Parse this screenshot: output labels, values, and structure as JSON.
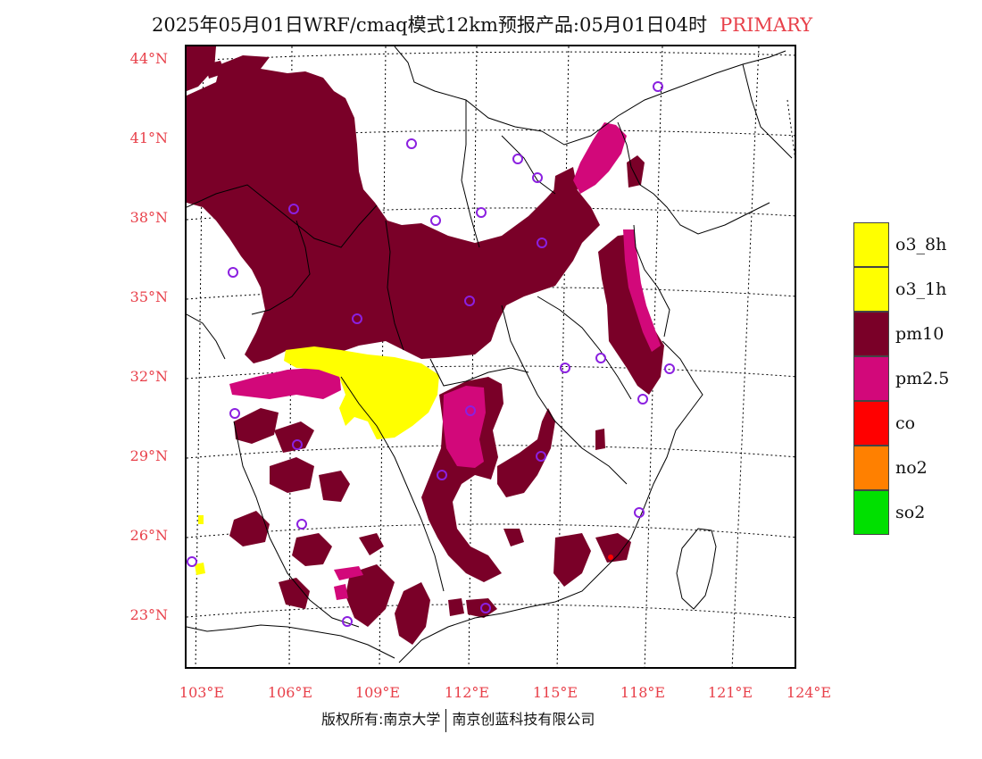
{
  "header": {
    "title": "2025年05月01日WRF/cmaq模式12km预报产品:05月01日04时",
    "tag": "PRIMARY"
  },
  "axes": {
    "lat_labels": [
      "44°N",
      "41°N",
      "38°N",
      "35°N",
      "32°N",
      "29°N",
      "26°N",
      "23°N"
    ],
    "lon_labels": [
      "103°E",
      "106°E",
      "109°E",
      "112°E",
      "115°E",
      "118°E",
      "121°E",
      "124°E"
    ]
  },
  "legend": [
    {
      "label": "o3_8h",
      "color": "#ffff00"
    },
    {
      "label": "o3_1h",
      "color": "#ffff00"
    },
    {
      "label": "pm10",
      "color": "#7a0028"
    },
    {
      "label": "pm2.5",
      "color": "#d2087a"
    },
    {
      "label": "co",
      "color": "#ff0000"
    },
    {
      "label": "no2",
      "color": "#ff8000"
    },
    {
      "label": "so2",
      "color": "#00e000"
    }
  ],
  "colors": {
    "pm10": "#7a0028",
    "pm25": "#d2087a",
    "o3": "#ffff00",
    "station": "#8b20e0",
    "axis_label": "#e8404a"
  },
  "footer": {
    "left": "版权所有:南京大学",
    "right": "南京创蓝科技有限公司"
  }
}
